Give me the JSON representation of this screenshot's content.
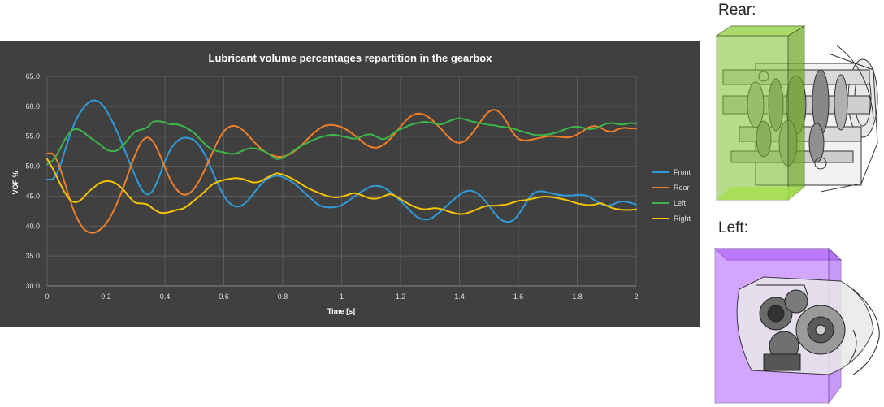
{
  "chart_data": {
    "type": "line",
    "title": "Lubricant volume percentages repartition in the gearbox",
    "xlabel": "Time [s]",
    "ylabel": "VOF %",
    "xlim": [
      0,
      2
    ],
    "ylim": [
      30,
      65
    ],
    "x_ticks": [
      "0",
      "0.2",
      "0.4",
      "0.6",
      "0.8",
      "1",
      "1.2",
      "1.4",
      "1.6",
      "1.8",
      "2"
    ],
    "y_ticks": [
      "30.0",
      "35.0",
      "40.0",
      "45.0",
      "50.0",
      "55.0",
      "60.0",
      "65.0"
    ],
    "grid": true,
    "legend_position": "right",
    "series": [
      {
        "name": "Front",
        "color": "#2E9BDB",
        "x": [
          0,
          0.02,
          0.04,
          0.06,
          0.08,
          0.1,
          0.12,
          0.14,
          0.16,
          0.18,
          0.2,
          0.22,
          0.24,
          0.26,
          0.28,
          0.3,
          0.32,
          0.34,
          0.36,
          0.38,
          0.4,
          0.42,
          0.44,
          0.46,
          0.48,
          0.5,
          0.52,
          0.54,
          0.56,
          0.58,
          0.6,
          0.62,
          0.64,
          0.66,
          0.68,
          0.7,
          0.72,
          0.74,
          0.76,
          0.78,
          0.8,
          0.82,
          0.84,
          0.86,
          0.88,
          0.9,
          0.92,
          0.94,
          0.96,
          0.98,
          1.0,
          1.02,
          1.04,
          1.06,
          1.08,
          1.1,
          1.12,
          1.14,
          1.16,
          1.18,
          1.2,
          1.22,
          1.24,
          1.26,
          1.28,
          1.3,
          1.32,
          1.34,
          1.36,
          1.38,
          1.4,
          1.42,
          1.44,
          1.46,
          1.48,
          1.5,
          1.52,
          1.54,
          1.56,
          1.58,
          1.6,
          1.62,
          1.64,
          1.66,
          1.68,
          1.7,
          1.72,
          1.74,
          1.76,
          1.78,
          1.8,
          1.82,
          1.84,
          1.86,
          1.88,
          1.9,
          1.92,
          1.94,
          1.96,
          1.98,
          2.0
        ],
        "values": [
          47.8,
          47.9,
          49.5,
          52.5,
          55.5,
          57.9,
          59.5,
          60.6,
          61.0,
          60.6,
          59.4,
          57.6,
          55.5,
          53.1,
          50.6,
          48.3,
          46.2,
          45.3,
          46.0,
          48.2,
          50.8,
          52.9,
          54.1,
          54.7,
          54.7,
          54.3,
          53.2,
          51.5,
          49.3,
          47.0,
          45.1,
          43.8,
          43.3,
          43.4,
          44.2,
          45.4,
          46.6,
          47.6,
          48.2,
          48.4,
          48.2,
          47.7,
          47.1,
          46.2,
          45.3,
          44.4,
          43.6,
          43.2,
          43.1,
          43.2,
          43.5,
          44.1,
          44.8,
          45.5,
          46.1,
          46.6,
          46.7,
          46.5,
          45.9,
          45.1,
          44.2,
          43.2,
          42.2,
          41.4,
          41.1,
          41.2,
          41.8,
          42.6,
          43.5,
          44.4,
          45.2,
          45.8,
          45.9,
          45.5,
          44.6,
          43.4,
          42.1,
          41.1,
          40.7,
          40.9,
          41.9,
          43.4,
          44.9,
          45.7,
          45.8,
          45.6,
          45.4,
          45.2,
          45.1,
          45.1,
          45.2,
          45.2,
          44.9,
          44.3,
          43.7,
          43.4,
          43.6,
          44.0,
          44.1,
          43.9,
          43.6
        ]
      },
      {
        "name": "Rear",
        "color": "#F07E26",
        "x": [
          0,
          0.02,
          0.04,
          0.06,
          0.08,
          0.1,
          0.12,
          0.14,
          0.16,
          0.18,
          0.2,
          0.22,
          0.24,
          0.26,
          0.28,
          0.3,
          0.32,
          0.34,
          0.36,
          0.38,
          0.4,
          0.42,
          0.44,
          0.46,
          0.48,
          0.5,
          0.52,
          0.54,
          0.56,
          0.58,
          0.6,
          0.62,
          0.64,
          0.66,
          0.68,
          0.7,
          0.72,
          0.74,
          0.76,
          0.78,
          0.8,
          0.82,
          0.84,
          0.86,
          0.88,
          0.9,
          0.92,
          0.94,
          0.96,
          0.98,
          1.0,
          1.02,
          1.04,
          1.06,
          1.08,
          1.1,
          1.12,
          1.14,
          1.16,
          1.18,
          1.2,
          1.22,
          1.24,
          1.26,
          1.28,
          1.3,
          1.32,
          1.34,
          1.36,
          1.38,
          1.4,
          1.42,
          1.44,
          1.46,
          1.48,
          1.5,
          1.52,
          1.54,
          1.56,
          1.58,
          1.6,
          1.62,
          1.64,
          1.66,
          1.68,
          1.7,
          1.72,
          1.74,
          1.76,
          1.78,
          1.8,
          1.82,
          1.84,
          1.86,
          1.88,
          1.9,
          1.92,
          1.94,
          1.96,
          1.98,
          2.0
        ],
        "values": [
          52.1,
          52.0,
          50.2,
          47.2,
          44.0,
          41.5,
          39.8,
          39.0,
          38.9,
          39.4,
          40.4,
          42.0,
          44.1,
          46.6,
          49.4,
          52.0,
          54.0,
          54.8,
          54.1,
          52.2,
          49.8,
          47.6,
          46.1,
          45.3,
          45.4,
          46.3,
          47.9,
          49.9,
          52.1,
          54.2,
          55.8,
          56.6,
          56.7,
          56.2,
          55.3,
          54.2,
          53.2,
          52.4,
          51.9,
          51.6,
          51.6,
          51.9,
          52.5,
          53.3,
          54.3,
          55.3,
          56.1,
          56.7,
          56.9,
          56.8,
          56.5,
          56.0,
          55.3,
          54.5,
          53.7,
          53.2,
          53.1,
          53.5,
          54.3,
          55.4,
          56.6,
          57.7,
          58.5,
          58.8,
          58.6,
          58.0,
          57.1,
          56.1,
          55.0,
          54.2,
          53.9,
          54.3,
          55.3,
          56.6,
          58.0,
          59.1,
          59.4,
          58.8,
          57.4,
          55.7,
          54.6,
          54.3,
          54.4,
          54.6,
          54.8,
          55.0,
          55.0,
          54.9,
          54.8,
          54.9,
          55.3,
          55.9,
          56.5,
          56.7,
          56.4,
          55.9,
          55.8,
          56.2,
          56.4,
          56.3,
          56.3
        ]
      },
      {
        "name": "Left",
        "color": "#3CB64A",
        "x": [
          0,
          0.02,
          0.04,
          0.06,
          0.08,
          0.1,
          0.12,
          0.14,
          0.16,
          0.18,
          0.2,
          0.22,
          0.24,
          0.26,
          0.28,
          0.3,
          0.32,
          0.34,
          0.36,
          0.38,
          0.4,
          0.42,
          0.44,
          0.46,
          0.48,
          0.5,
          0.52,
          0.54,
          0.56,
          0.58,
          0.6,
          0.62,
          0.64,
          0.66,
          0.68,
          0.7,
          0.72,
          0.74,
          0.76,
          0.78,
          0.8,
          0.82,
          0.84,
          0.86,
          0.88,
          0.9,
          0.92,
          0.94,
          0.96,
          0.98,
          1.0,
          1.02,
          1.04,
          1.06,
          1.08,
          1.1,
          1.12,
          1.14,
          1.16,
          1.18,
          1.2,
          1.22,
          1.24,
          1.26,
          1.28,
          1.3,
          1.32,
          1.34,
          1.36,
          1.38,
          1.4,
          1.42,
          1.44,
          1.46,
          1.48,
          1.5,
          1.52,
          1.54,
          1.56,
          1.58,
          1.6,
          1.62,
          1.64,
          1.66,
          1.68,
          1.7,
          1.72,
          1.74,
          1.76,
          1.78,
          1.8,
          1.82,
          1.84,
          1.86,
          1.88,
          1.9,
          1.92,
          1.94,
          1.96,
          1.98,
          2.0
        ],
        "values": [
          50.3,
          51.0,
          52.5,
          54.4,
          55.8,
          56.2,
          55.8,
          55.0,
          54.3,
          53.6,
          52.8,
          52.5,
          52.7,
          53.6,
          54.8,
          55.8,
          56.1,
          56.5,
          57.4,
          57.5,
          57.3,
          57.0,
          57.0,
          56.7,
          56.2,
          55.5,
          54.5,
          53.5,
          52.8,
          52.5,
          52.3,
          52.1,
          52.1,
          52.5,
          52.9,
          53.0,
          52.8,
          52.4,
          51.8,
          51.2,
          51.4,
          52.0,
          52.7,
          53.3,
          53.8,
          54.3,
          54.7,
          55.0,
          55.2,
          55.2,
          55.0,
          54.8,
          54.6,
          54.8,
          55.2,
          55.3,
          54.9,
          54.5,
          54.9,
          55.7,
          56.2,
          56.6,
          57.0,
          57.2,
          57.4,
          57.3,
          57.1,
          57.0,
          57.4,
          57.8,
          58.0,
          57.8,
          57.5,
          57.3,
          57.1,
          56.9,
          56.8,
          56.6,
          56.5,
          56.3,
          56.0,
          55.7,
          55.4,
          55.2,
          55.2,
          55.3,
          55.5,
          55.8,
          56.2,
          56.5,
          56.6,
          56.4,
          56.2,
          56.3,
          56.7,
          57.1,
          57.2,
          57.0,
          57.0,
          57.2,
          57.1
        ]
      },
      {
        "name": "Right",
        "color": "#F5C200",
        "x": [
          0,
          0.02,
          0.04,
          0.06,
          0.08,
          0.1,
          0.12,
          0.14,
          0.16,
          0.18,
          0.2,
          0.22,
          0.24,
          0.26,
          0.28,
          0.3,
          0.32,
          0.34,
          0.36,
          0.38,
          0.4,
          0.42,
          0.44,
          0.46,
          0.48,
          0.5,
          0.52,
          0.54,
          0.56,
          0.58,
          0.6,
          0.62,
          0.64,
          0.66,
          0.68,
          0.7,
          0.72,
          0.74,
          0.76,
          0.78,
          0.8,
          0.82,
          0.84,
          0.86,
          0.88,
          0.9,
          0.92,
          0.94,
          0.96,
          0.98,
          1.0,
          1.02,
          1.04,
          1.06,
          1.08,
          1.1,
          1.12,
          1.14,
          1.16,
          1.18,
          1.2,
          1.22,
          1.24,
          1.26,
          1.28,
          1.3,
          1.32,
          1.34,
          1.36,
          1.38,
          1.4,
          1.42,
          1.44,
          1.46,
          1.48,
          1.5,
          1.52,
          1.54,
          1.56,
          1.58,
          1.6,
          1.62,
          1.64,
          1.66,
          1.68,
          1.7,
          1.72,
          1.74,
          1.76,
          1.78,
          1.8,
          1.82,
          1.84,
          1.86,
          1.88,
          1.9,
          1.92,
          1.94,
          1.96,
          1.98,
          2.0
        ],
        "values": [
          51.2,
          49.5,
          47.5,
          45.6,
          44.3,
          44.0,
          44.6,
          45.7,
          46.5,
          47.2,
          47.5,
          47.4,
          46.9,
          46.0,
          44.8,
          43.9,
          43.8,
          43.6,
          42.9,
          42.3,
          42.2,
          42.4,
          42.7,
          42.9,
          43.5,
          44.3,
          45.1,
          46.0,
          46.9,
          47.4,
          47.7,
          47.9,
          48.0,
          47.9,
          47.6,
          47.3,
          47.4,
          47.9,
          48.4,
          48.8,
          48.6,
          48.2,
          47.7,
          47.1,
          46.5,
          46.0,
          45.6,
          45.2,
          44.9,
          44.8,
          44.9,
          45.2,
          45.5,
          45.3,
          44.9,
          44.6,
          44.6,
          44.9,
          45.3,
          45.1,
          44.5,
          43.9,
          43.4,
          43.0,
          42.8,
          42.9,
          43.0,
          42.8,
          42.5,
          42.2,
          42.0,
          42.1,
          42.4,
          42.8,
          43.2,
          43.4,
          43.4,
          43.5,
          43.6,
          43.9,
          44.2,
          44.3,
          44.5,
          44.7,
          44.9,
          44.9,
          44.8,
          44.6,
          44.4,
          44.1,
          43.8,
          43.6,
          43.5,
          43.6,
          43.8,
          43.4,
          43.0,
          42.8,
          42.7,
          42.7,
          42.8
        ]
      }
    ]
  },
  "figure": {
    "rear_label": "Rear:",
    "left_label": "Left:",
    "rear_box_color": "#7CC02E",
    "left_box_color": "#A64DFF"
  }
}
